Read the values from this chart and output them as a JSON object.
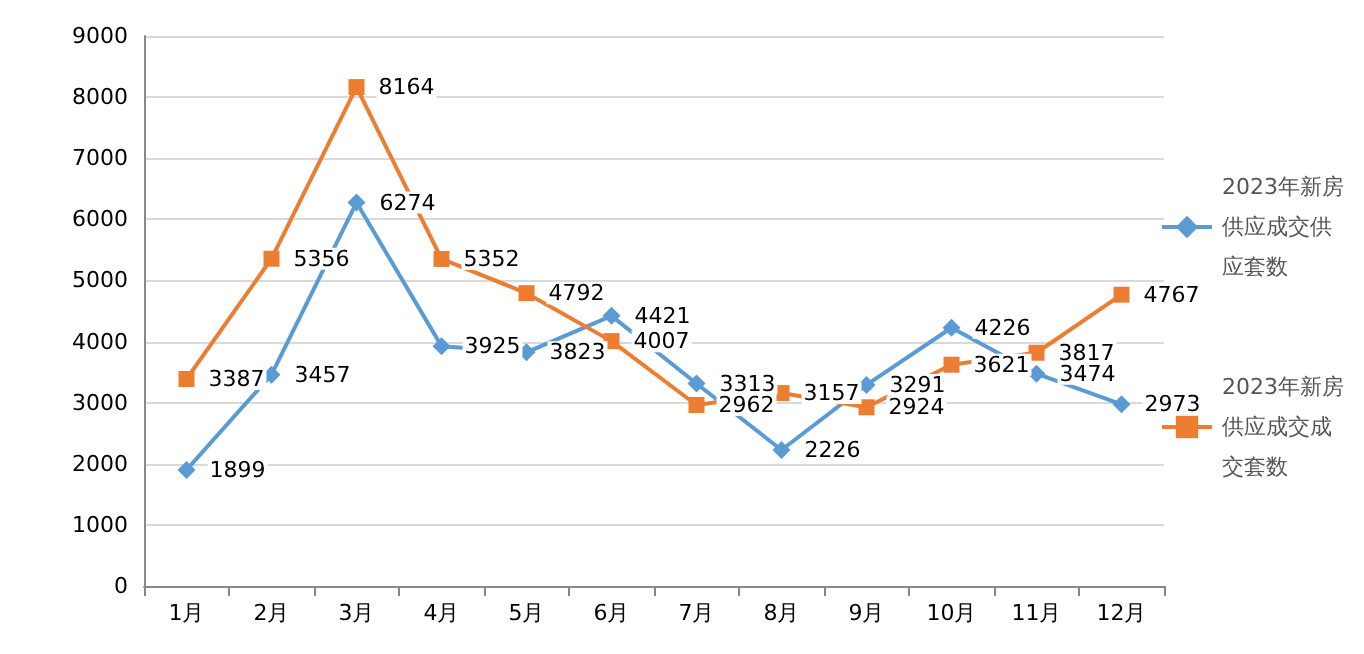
{
  "chart_data": {
    "type": "line",
    "categories": [
      "1月",
      "2月",
      "3月",
      "4月",
      "5月",
      "6月",
      "7月",
      "8月",
      "9月",
      "10月",
      "11月",
      "12月"
    ],
    "series": [
      {
        "name": "2023年新房供应成交供应套数",
        "color": "#5b9bd5",
        "marker": "diamond",
        "values": [
          1899,
          3457,
          6274,
          3925,
          3823,
          4421,
          3313,
          2226,
          3291,
          4226,
          3474,
          2973
        ]
      },
      {
        "name": "2023年新房供应成交成交套数",
        "color": "#ed7d31",
        "marker": "square",
        "values": [
          3387,
          5356,
          8164,
          5352,
          4792,
          4007,
          2962,
          3157,
          2924,
          3621,
          3817,
          4767
        ]
      }
    ],
    "ylim": [
      0,
      9000
    ],
    "yticks": [
      0,
      1000,
      2000,
      3000,
      4000,
      5000,
      6000,
      7000,
      8000,
      9000
    ],
    "grid": "y",
    "legend": "right",
    "data_labels": true
  }
}
